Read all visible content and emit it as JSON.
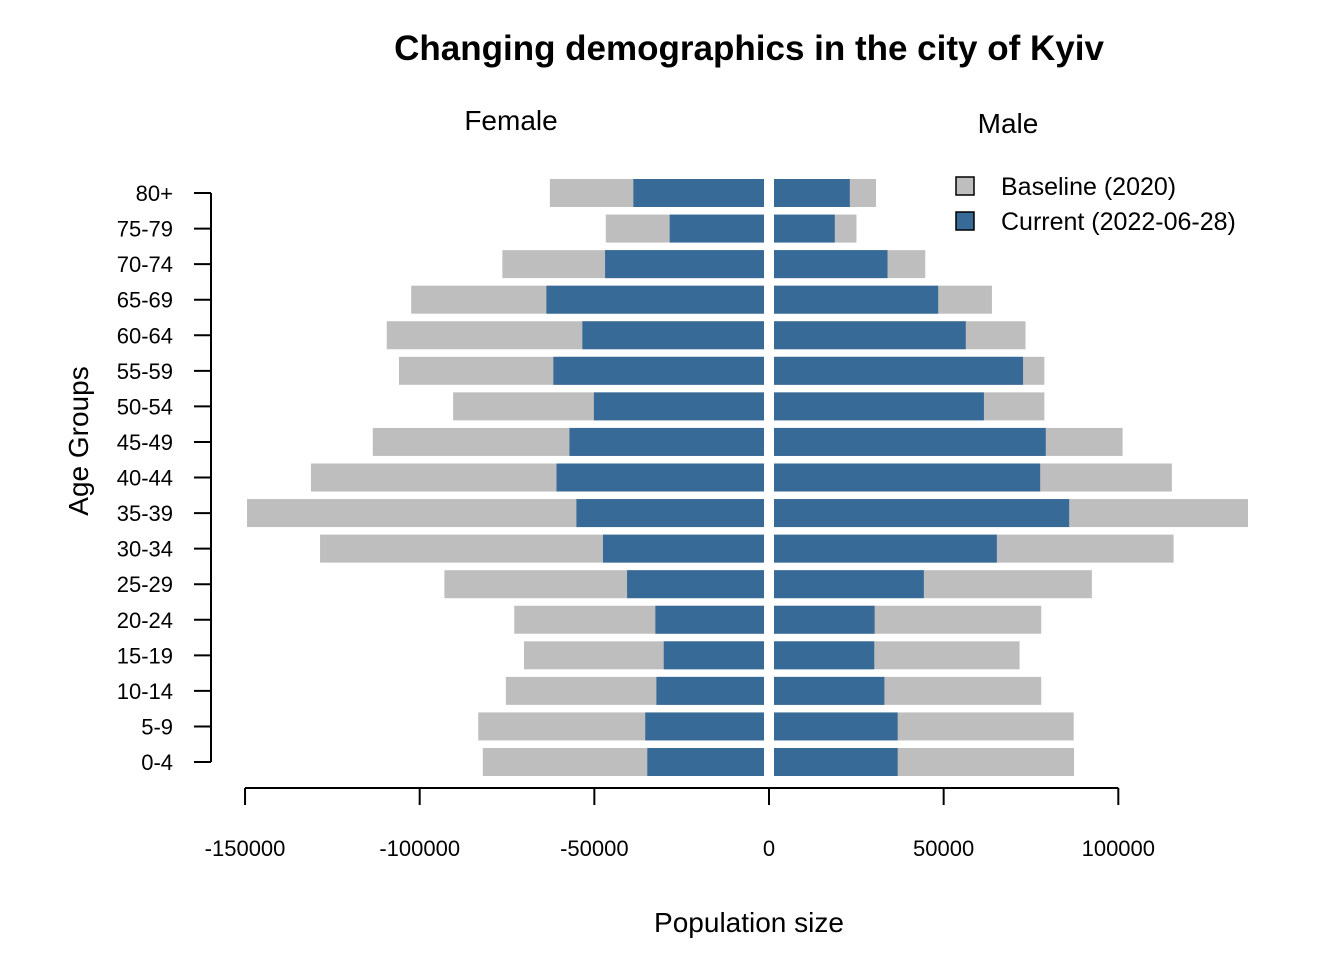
{
  "chart_data": {
    "type": "bar",
    "title": "Changing demographics in the city of Kyiv",
    "xlabel": "Population size",
    "ylabel": "Age Groups",
    "panels": {
      "left": "Female",
      "right": "Male"
    },
    "categories": [
      "0-4",
      "5-9",
      "10-14",
      "15-19",
      "20-24",
      "25-29",
      "30-34",
      "35-39",
      "40-44",
      "45-49",
      "50-54",
      "55-59",
      "60-64",
      "65-69",
      "70-74",
      "75-79",
      "80+"
    ],
    "x_ticks": [
      -150000,
      -100000,
      -50000,
      0,
      50000,
      100000
    ],
    "x_tick_labels": [
      "-150000",
      "-100000",
      "-50000",
      "0",
      "50000",
      "100000"
    ],
    "legend": {
      "position": "top-right",
      "entries": [
        {
          "label": "Baseline (2020)",
          "color": "#bebebe"
        },
        {
          "label": "Current (2022-06-28)",
          "color": "#386a97"
        }
      ]
    },
    "series": [
      {
        "name": "Baseline (2020)",
        "color": "#bebebe",
        "female": [
          -80500,
          -81800,
          -73900,
          -68700,
          -71500,
          -91500,
          -127100,
          -148000,
          -129700,
          -112000,
          -89000,
          -104500,
          -108000,
          -101000,
          -74900,
          -45300,
          -61300
        ],
        "male": [
          85900,
          85800,
          76500,
          70300,
          76500,
          91000,
          114400,
          135700,
          113900,
          99800,
          77400,
          77400,
          72000,
          62400,
          43300,
          23600,
          29200
        ]
      },
      {
        "name": "Current (2022-06-28)",
        "color": "#386a97",
        "female": [
          -33400,
          -34000,
          -30800,
          -28700,
          -31100,
          -39200,
          -46100,
          -53700,
          -59400,
          -55700,
          -48700,
          -60300,
          -52000,
          -62300,
          -45500,
          -27000,
          -37400
        ],
        "male": [
          35400,
          35400,
          31600,
          28700,
          28800,
          42900,
          63800,
          84500,
          76200,
          77800,
          60100,
          71300,
          54900,
          47000,
          32500,
          17400,
          21700
        ]
      }
    ],
    "xlim": [
      -150000,
      100000
    ]
  }
}
